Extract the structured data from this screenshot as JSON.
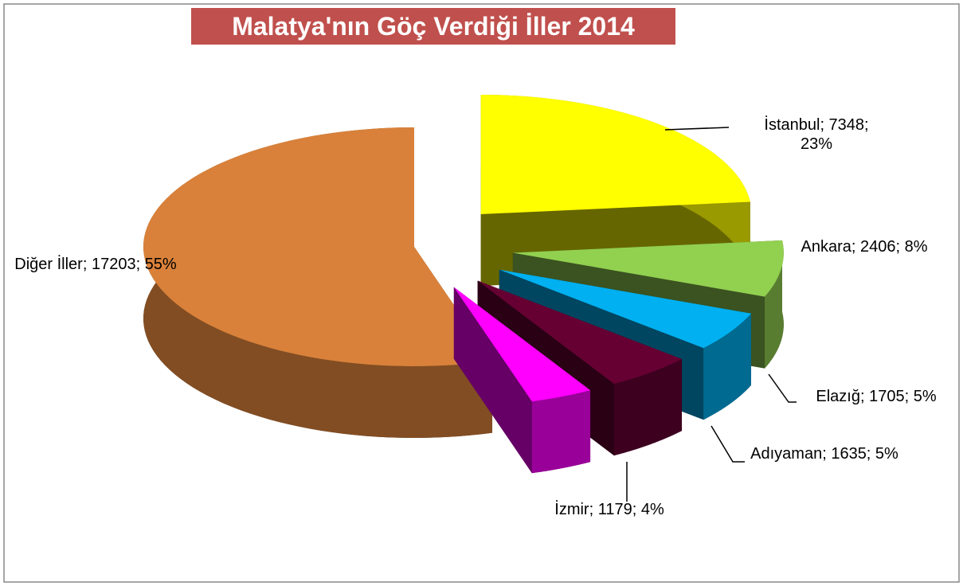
{
  "chart_data": {
    "type": "pie3d",
    "title": "Malatya'nın Göç Verdiği İller 2014",
    "categories": [
      "İstanbul",
      "Ankara",
      "Elazığ",
      "Adıyaman",
      "İzmir",
      "Diğer İller"
    ],
    "values": [
      7348,
      2406,
      1705,
      1635,
      1179,
      17203
    ],
    "value_labels": [
      "İstanbul; 7348; 23%",
      "Ankara; 2406; 8%",
      "Elazığ; 1705; 5%",
      "Adıyaman; 1635; 5%",
      "İzmir; 1179; 4%",
      "Diğer İller; 17203; 55%"
    ],
    "colors": [
      "#ffff00",
      "#92d050",
      "#00b0f0",
      "#660033",
      "#ff00ff",
      "#d9813a"
    ]
  }
}
